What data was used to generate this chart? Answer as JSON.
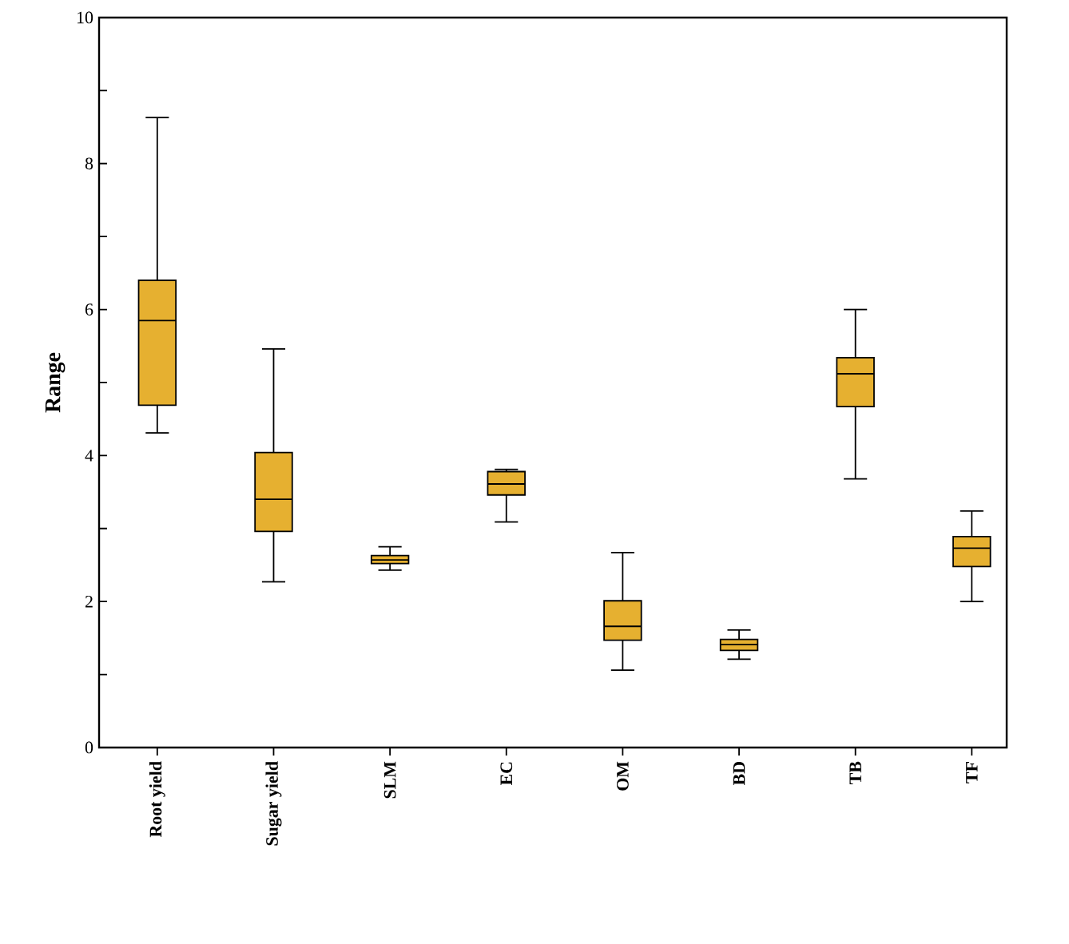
{
  "chart_data": {
    "type": "box",
    "ylabel": "Range",
    "categories": [
      "Root yield",
      "Sugar yield",
      "SLM",
      "EC",
      "OM",
      "BD",
      "TB",
      "TF"
    ],
    "boxes": [
      {
        "low": 4.31,
        "q1": 4.69,
        "median": 5.85,
        "q3": 6.4,
        "high": 8.63
      },
      {
        "low": 2.27,
        "q1": 2.96,
        "median": 3.4,
        "q3": 4.04,
        "high": 5.46
      },
      {
        "low": 2.43,
        "q1": 2.52,
        "median": 2.57,
        "q3": 2.63,
        "high": 2.75
      },
      {
        "low": 3.09,
        "q1": 3.46,
        "median": 3.61,
        "q3": 3.78,
        "high": 3.81
      },
      {
        "low": 1.06,
        "q1": 1.47,
        "median": 1.66,
        "q3": 2.01,
        "high": 2.67
      },
      {
        "low": 1.21,
        "q1": 1.33,
        "median": 1.41,
        "q3": 1.48,
        "high": 1.61
      },
      {
        "low": 3.68,
        "q1": 4.67,
        "median": 5.12,
        "q3": 5.34,
        "high": 6.0
      },
      {
        "low": 2.0,
        "q1": 2.48,
        "median": 2.73,
        "q3": 2.89,
        "high": 3.24
      }
    ],
    "color": "#e6b030",
    "ylim": [
      0,
      10
    ],
    "yticks": [
      0,
      {
        "value": 1,
        "label": null
      },
      2,
      {
        "value": 3,
        "label": null
      },
      4,
      {
        "value": 5,
        "label": null
      },
      6,
      {
        "value": 7,
        "label": null
      },
      8,
      {
        "value": 9,
        "label": null
      },
      10
    ]
  }
}
